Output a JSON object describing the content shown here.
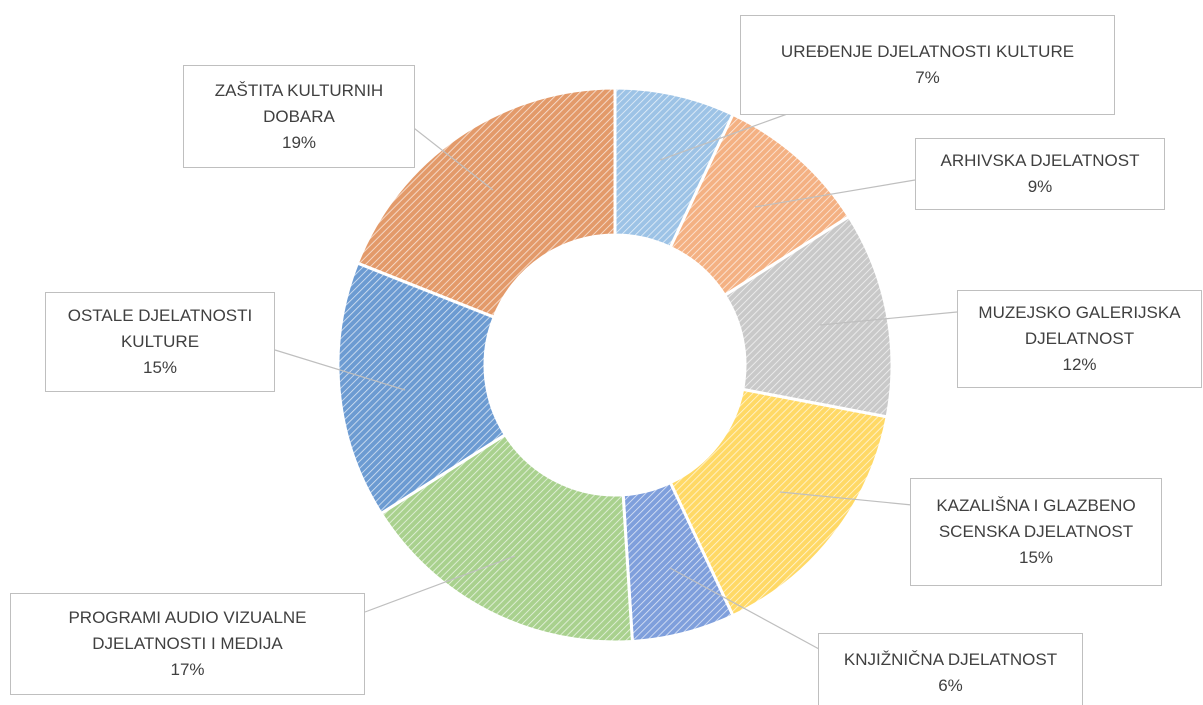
{
  "chart_data": {
    "type": "doughnut",
    "categories": [
      "UREĐENJE DJELATNOSTI KULTURE",
      "ARHIVSKA DJELATNOST",
      "MUZEJSKO GALERIJSKA DJELATNOST",
      "KAZALIŠNA I GLAZBENO SCENSKA DJELATNOST",
      "KNJIŽNIČNA DJELATNOST",
      "PROGRAMI AUDIO VIZUALNE DJELATNOSTI I MEDIJA",
      "OSTALE DJELATNOSTI KULTURE",
      "ZAŠTITA KULTURNIH DOBARA"
    ],
    "values": [
      7,
      9,
      12,
      15,
      6,
      17,
      15,
      19
    ],
    "value_labels": [
      "7%",
      "9%",
      "12%",
      "15%",
      "6%",
      "17%",
      "15%",
      "19%"
    ],
    "colors": [
      "#9dc3e6",
      "#f4b183",
      "#c9c9c9",
      "#ffd966",
      "#7f9fdc",
      "#a9d18e",
      "#6c9bd2",
      "#e39a6a"
    ]
  }
}
